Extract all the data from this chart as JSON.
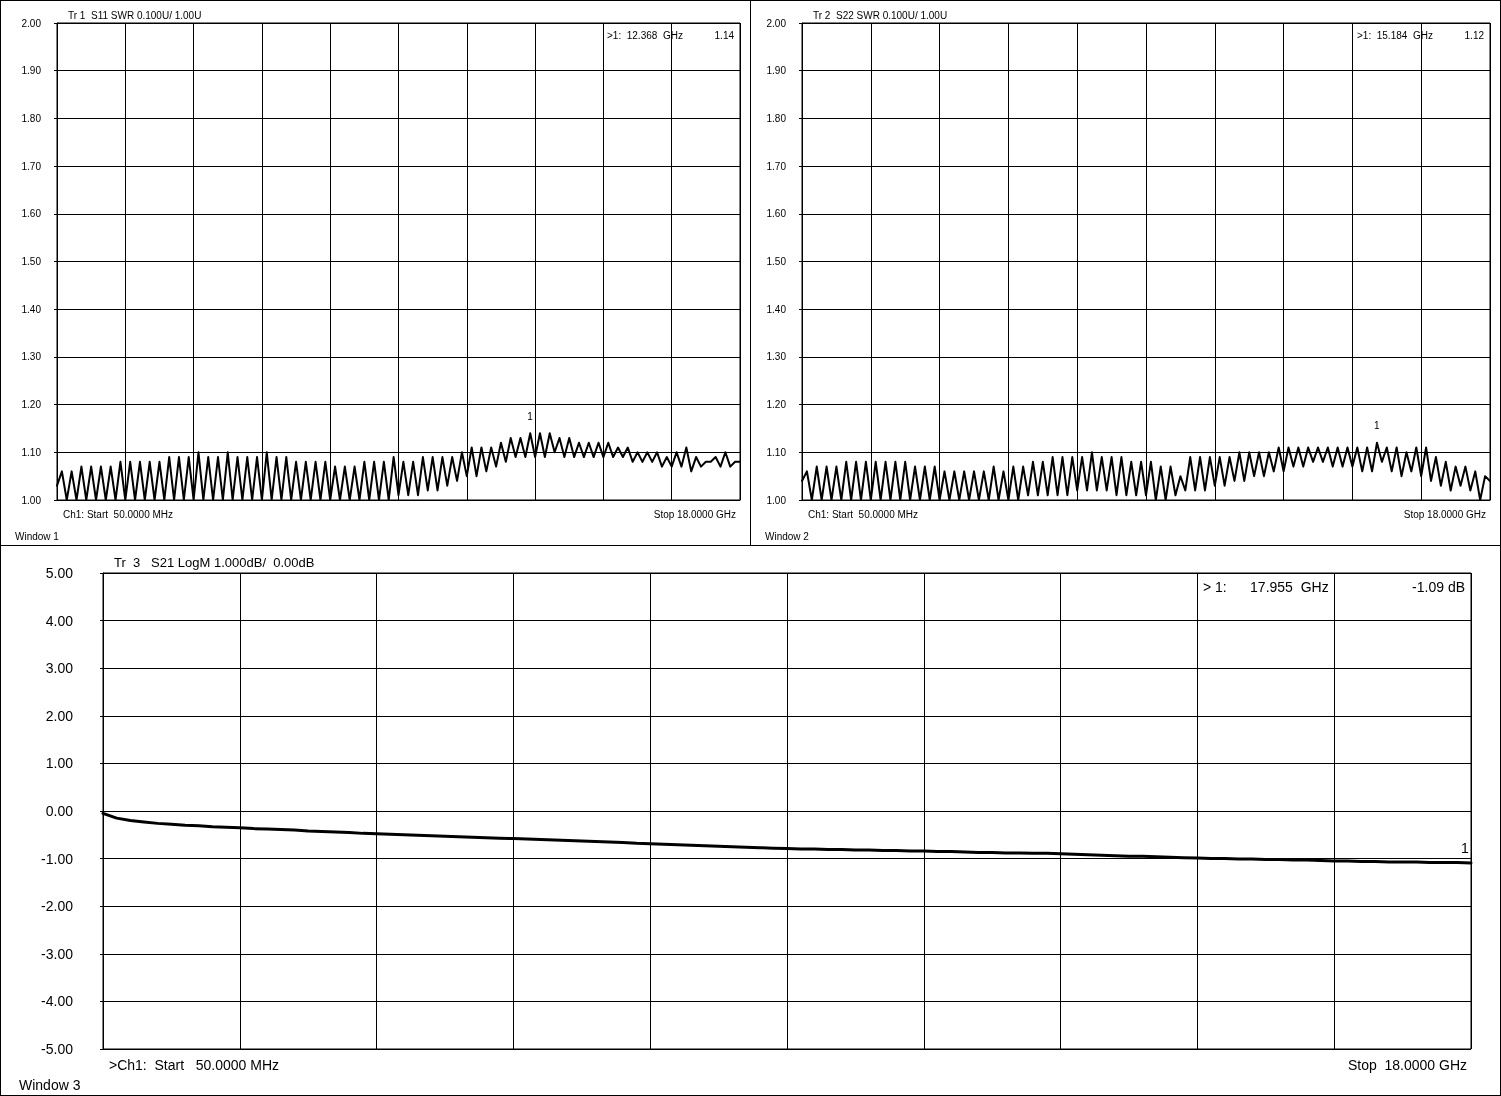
{
  "chart_data": [
    {
      "type": "line",
      "title": "Tr 1  S11 SWR 0.100U/ 1.00U",
      "annotations": [
        ">1:  12.368  GHz",
        "1.14",
        "Ch1: Start  50.0000 MHz",
        "Stop 18.0000 GHz",
        "Window 1",
        {
          "text": "1",
          "y": 1.14
        }
      ],
      "categories": [
        null,
        null,
        null,
        null,
        null,
        null,
        null,
        null,
        null,
        null,
        null,
        null,
        null,
        null,
        null,
        null,
        null,
        null,
        null,
        null,
        null,
        null,
        null,
        null,
        null,
        null,
        null,
        null,
        null,
        null,
        null,
        null,
        null,
        null,
        null,
        null,
        null,
        null,
        null,
        null,
        null,
        null,
        null,
        null,
        null,
        null,
        null,
        null,
        null,
        null,
        null,
        null,
        null,
        null,
        null,
        null,
        null,
        null,
        null,
        null,
        null,
        null,
        null,
        null,
        null,
        null,
        null,
        null,
        null,
        null,
        null,
        null,
        null,
        null,
        null,
        null,
        null,
        null,
        null,
        null,
        null,
        null,
        null,
        null,
        null,
        null,
        null,
        null,
        null,
        null,
        null,
        null,
        null,
        null,
        null,
        null,
        null,
        null,
        null,
        null,
        null,
        null,
        null,
        null,
        null,
        null,
        null,
        null,
        null,
        null,
        null,
        null,
        null,
        null,
        null,
        null,
        null,
        null,
        null,
        null,
        null,
        null,
        null,
        null,
        null,
        null,
        null,
        null,
        null,
        null,
        null,
        null,
        null,
        null,
        null,
        null,
        null,
        null,
        null,
        null,
        null
      ],
      "series": [
        {
          "color": "#000000",
          "values": [
            1.03,
            1.06,
            1.0,
            1.06,
            1.0,
            1.07,
            1.0,
            1.07,
            1.0,
            1.07,
            1.0,
            1.07,
            1.0,
            1.08,
            1.0,
            1.08,
            1.0,
            1.08,
            1.0,
            1.08,
            1.0,
            1.08,
            1.0,
            1.09,
            1.0,
            1.09,
            1.0,
            1.09,
            1.0,
            1.1,
            1.0,
            1.09,
            1.0,
            1.09,
            1.0,
            1.1,
            1.0,
            1.09,
            1.0,
            1.09,
            1.0,
            1.09,
            1.0,
            1.1,
            1.0,
            1.09,
            1.0,
            1.09,
            1.0,
            1.08,
            1.0,
            1.08,
            1.0,
            1.08,
            1.0,
            1.08,
            1.0,
            1.07,
            1.0,
            1.07,
            1.0,
            1.07,
            1.0,
            1.08,
            1.0,
            1.08,
            1.0,
            1.08,
            1.0,
            1.09,
            1.01,
            1.08,
            1.01,
            1.08,
            1.01,
            1.09,
            1.02,
            1.09,
            1.02,
            1.09,
            1.03,
            1.09,
            1.04,
            1.1,
            1.05,
            1.11,
            1.05,
            1.11,
            1.06,
            1.11,
            1.07,
            1.12,
            1.08,
            1.13,
            1.09,
            1.13,
            1.09,
            1.14,
            1.09,
            1.14,
            1.09,
            1.14,
            1.1,
            1.13,
            1.09,
            1.13,
            1.09,
            1.12,
            1.09,
            1.12,
            1.09,
            1.12,
            1.09,
            1.12,
            1.09,
            1.11,
            1.09,
            1.11,
            1.08,
            1.1,
            1.08,
            1.1,
            1.08,
            1.1,
            1.07,
            1.09,
            1.07,
            1.1,
            1.07,
            1.11,
            1.06,
            1.09,
            1.07,
            1.08,
            1.08,
            1.09,
            1.07,
            1.1,
            1.07,
            1.08,
            1.08
          ]
        }
      ],
      "ylim": [
        1,
        2
      ],
      "yticks": [
        {
          "value": 1,
          "label": "1.00"
        },
        {
          "value": 1.1,
          "label": "1.10"
        },
        {
          "value": 1.2,
          "label": "1.20"
        },
        {
          "value": 1.3,
          "label": "1.30"
        },
        {
          "value": 1.4,
          "label": "1.40"
        },
        {
          "value": 1.5,
          "label": "1.50"
        },
        {
          "value": 1.6,
          "label": "1.60"
        },
        {
          "value": 1.7,
          "label": "1.70"
        },
        {
          "value": 1.8,
          "label": "1.80"
        },
        {
          "value": 1.9,
          "label": "1.90"
        },
        {
          "value": 2,
          "label": "2.00"
        }
      ],
      "grid": true,
      "tick_labels": "y",
      "marker": "none",
      "line_style": "solid"
    },
    {
      "type": "line",
      "title": "Tr 2  S22 SWR 0.100U/ 1.00U",
      "annotations": [
        ">1:  15.184  GHz",
        "1.12",
        "Ch1: Start  50.0000 MHz",
        "Stop 18.0000 GHz",
        "Window 2",
        {
          "text": "1",
          "y": 1.12
        }
      ],
      "categories": [
        null,
        null,
        null,
        null,
        null,
        null,
        null,
        null,
        null,
        null,
        null,
        null,
        null,
        null,
        null,
        null,
        null,
        null,
        null,
        null,
        null,
        null,
        null,
        null,
        null,
        null,
        null,
        null,
        null,
        null,
        null,
        null,
        null,
        null,
        null,
        null,
        null,
        null,
        null,
        null,
        null,
        null,
        null,
        null,
        null,
        null,
        null,
        null,
        null,
        null,
        null,
        null,
        null,
        null,
        null,
        null,
        null,
        null,
        null,
        null,
        null,
        null,
        null,
        null,
        null,
        null,
        null,
        null,
        null,
        null,
        null,
        null,
        null,
        null,
        null,
        null,
        null,
        null,
        null,
        null,
        null,
        null,
        null,
        null,
        null,
        null,
        null,
        null,
        null,
        null,
        null,
        null,
        null,
        null,
        null,
        null,
        null,
        null,
        null,
        null,
        null,
        null,
        null,
        null,
        null,
        null,
        null,
        null,
        null,
        null,
        null,
        null,
        null,
        null,
        null,
        null,
        null,
        null,
        null,
        null,
        null,
        null,
        null,
        null,
        null,
        null,
        null,
        null,
        null,
        null,
        null,
        null,
        null,
        null,
        null,
        null,
        null,
        null,
        null,
        null,
        null
      ],
      "series": [
        {
          "color": "#000000",
          "values": [
            1.04,
            1.06,
            1.0,
            1.07,
            1.0,
            1.07,
            1.0,
            1.07,
            1.0,
            1.08,
            1.0,
            1.08,
            1.0,
            1.08,
            1.0,
            1.08,
            1.0,
            1.08,
            1.0,
            1.08,
            1.0,
            1.08,
            1.0,
            1.07,
            1.0,
            1.07,
            1.0,
            1.07,
            1.0,
            1.06,
            1.0,
            1.06,
            1.0,
            1.06,
            1.0,
            1.06,
            1.0,
            1.06,
            1.0,
            1.07,
            1.0,
            1.06,
            1.0,
            1.07,
            1.0,
            1.07,
            1.01,
            1.08,
            1.01,
            1.08,
            1.01,
            1.09,
            1.01,
            1.09,
            1.01,
            1.09,
            1.02,
            1.09,
            1.02,
            1.1,
            1.02,
            1.09,
            1.02,
            1.09,
            1.01,
            1.09,
            1.01,
            1.08,
            1.01,
            1.08,
            1.01,
            1.08,
            1.0,
            1.07,
            1.0,
            1.07,
            1.01,
            1.05,
            1.02,
            1.09,
            1.02,
            1.09,
            1.02,
            1.09,
            1.03,
            1.09,
            1.03,
            1.09,
            1.04,
            1.1,
            1.04,
            1.1,
            1.05,
            1.1,
            1.05,
            1.1,
            1.06,
            1.11,
            1.06,
            1.11,
            1.07,
            1.11,
            1.07,
            1.11,
            1.08,
            1.11,
            1.08,
            1.11,
            1.07,
            1.11,
            1.07,
            1.11,
            1.07,
            1.11,
            1.06,
            1.11,
            1.06,
            1.12,
            1.08,
            1.11,
            1.06,
            1.11,
            1.05,
            1.1,
            1.06,
            1.11,
            1.05,
            1.11,
            1.04,
            1.09,
            1.03,
            1.08,
            1.02,
            1.07,
            1.03,
            1.07,
            1.02,
            1.06,
            1.0,
            1.05,
            1.04
          ]
        }
      ],
      "ylim": [
        1,
        2
      ],
      "yticks": [
        {
          "value": 1,
          "label": "1.00"
        },
        {
          "value": 1.1,
          "label": "1.10"
        },
        {
          "value": 1.2,
          "label": "1.20"
        },
        {
          "value": 1.3,
          "label": "1.30"
        },
        {
          "value": 1.4,
          "label": "1.40"
        },
        {
          "value": 1.5,
          "label": "1.50"
        },
        {
          "value": 1.6,
          "label": "1.60"
        },
        {
          "value": 1.7,
          "label": "1.70"
        },
        {
          "value": 1.8,
          "label": "1.80"
        },
        {
          "value": 1.9,
          "label": "1.90"
        },
        {
          "value": 2,
          "label": "2.00"
        }
      ],
      "grid": true,
      "tick_labels": "y",
      "marker": "none",
      "line_style": "solid"
    },
    {
      "type": "line",
      "title": "Tr  3   S21 LogM 1.000dB/  0.00dB",
      "annotations": [
        "> 1:      17.955  GHz",
        "-1.09 dB",
        ">Ch1:  Start   50.0000 MHz",
        "Stop  18.0000 GHz",
        "Window 3",
        {
          "text": "1",
          "y": -1.09
        }
      ],
      "categories": [
        null,
        null,
        null,
        null,
        null,
        null,
        null,
        null,
        null,
        null,
        null,
        null,
        null,
        null,
        null,
        null,
        null,
        null,
        null,
        null,
        null,
        null,
        null,
        null,
        null,
        null,
        null,
        null,
        null,
        null,
        null,
        null,
        null,
        null,
        null,
        null,
        null,
        null,
        null,
        null,
        null,
        null,
        null,
        null,
        null,
        null,
        null,
        null,
        null,
        null,
        null,
        null,
        null,
        null,
        null,
        null,
        null,
        null,
        null,
        null,
        null,
        null,
        null,
        null,
        null,
        null,
        null,
        null,
        null,
        null,
        null,
        null,
        null,
        null,
        null,
        null,
        null,
        null,
        null,
        null,
        null,
        null,
        null,
        null,
        null,
        null,
        null,
        null,
        null,
        null,
        null,
        null,
        null,
        null,
        null,
        null,
        null,
        null,
        null,
        null,
        null
      ],
      "series": [
        {
          "color": "#000000",
          "values": [
            -0.05,
            -0.15,
            -0.2,
            -0.23,
            -0.26,
            -0.28,
            -0.3,
            -0.31,
            -0.33,
            -0.34,
            -0.35,
            -0.37,
            -0.38,
            -0.39,
            -0.4,
            -0.42,
            -0.43,
            -0.44,
            -0.45,
            -0.47,
            -0.48,
            -0.49,
            -0.5,
            -0.51,
            -0.52,
            -0.53,
            -0.54,
            -0.55,
            -0.56,
            -0.57,
            -0.58,
            -0.59,
            -0.6,
            -0.61,
            -0.62,
            -0.63,
            -0.64,
            -0.65,
            -0.66,
            -0.68,
            -0.69,
            -0.7,
            -0.71,
            -0.72,
            -0.73,
            -0.74,
            -0.75,
            -0.76,
            -0.77,
            -0.78,
            -0.79,
            -0.8,
            -0.8,
            -0.81,
            -0.81,
            -0.82,
            -0.82,
            -0.83,
            -0.83,
            -0.84,
            -0.84,
            -0.85,
            -0.85,
            -0.86,
            -0.87,
            -0.87,
            -0.88,
            -0.88,
            -0.89,
            -0.89,
            -0.9,
            -0.91,
            -0.92,
            -0.93,
            -0.94,
            -0.95,
            -0.95,
            -0.96,
            -0.97,
            -0.98,
            -0.99,
            -1.0,
            -1.0,
            -1.01,
            -1.01,
            -1.02,
            -1.02,
            -1.03,
            -1.03,
            -1.04,
            -1.05,
            -1.05,
            -1.06,
            -1.06,
            -1.07,
            -1.07,
            -1.07,
            -1.08,
            -1.08,
            -1.08,
            -1.09
          ]
        }
      ],
      "ylim": [
        -5,
        5
      ],
      "yticks": [
        {
          "value": -5,
          "label": "-5.00"
        },
        {
          "value": -4,
          "label": "-4.00"
        },
        {
          "value": -3,
          "label": "-3.00"
        },
        {
          "value": -2,
          "label": "-2.00"
        },
        {
          "value": -1,
          "label": "-1.00"
        },
        {
          "value": 0,
          "label": "0.00"
        },
        {
          "value": 1,
          "label": "1.00"
        },
        {
          "value": 2,
          "label": "2.00"
        },
        {
          "value": 3,
          "label": "3.00"
        },
        {
          "value": 4,
          "label": "4.00"
        },
        {
          "value": 5,
          "label": "5.00"
        }
      ],
      "grid": true,
      "tick_labels": "y",
      "marker": "none",
      "line_style": "solid"
    }
  ]
}
